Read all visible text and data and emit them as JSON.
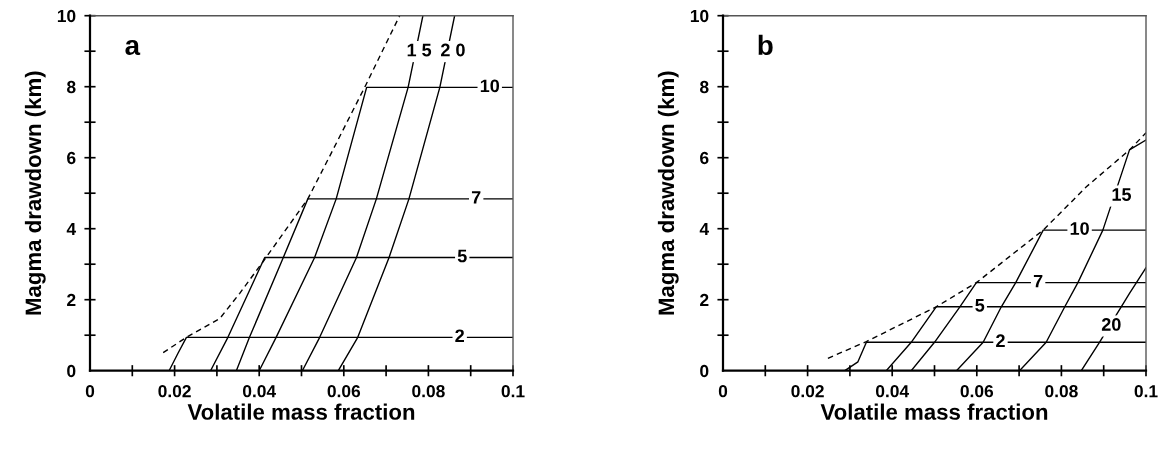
{
  "chart_data": [
    {
      "type": "line",
      "xlabel": "Volatile mass fraction",
      "ylabel": "Magma drawdown (km)",
      "xlim": [
        0,
        0.1
      ],
      "ylim": [
        0,
        10
      ],
      "xticks": [
        0,
        {
          "value": 0.01,
          "label": null
        },
        0.02,
        {
          "value": 0.03,
          "label": null
        },
        0.04,
        {
          "value": 0.05,
          "label": null
        },
        0.06,
        {
          "value": 0.07,
          "label": null
        },
        0.08,
        {
          "value": 0.09,
          "label": null
        },
        0.1
      ],
      "yticks": [
        0,
        {
          "value": 1,
          "label": null
        },
        2,
        {
          "value": 3,
          "label": null
        },
        4,
        {
          "value": 5,
          "label": null
        },
        6,
        {
          "value": 7,
          "label": null
        },
        8,
        {
          "value": 9,
          "label": null
        },
        10
      ],
      "grid": false,
      "legend": false,
      "marker": "none",
      "series": [
        {
          "color": "#000000",
          "line_style": "dashed",
          "x": [
            0.0173,
            0.0228,
            0.0307,
            0.0354,
            0.0409,
            0.0515,
            0.0582,
            0.0653,
            0.0732
          ],
          "values": [
            0.51,
            0.94,
            1.47,
            2.18,
            3.07,
            4.84,
            6.4,
            8.07,
            10
          ]
        },
        {
          "color": "#000000",
          "line_style": "solid",
          "x": [
            0.0187,
            0.0208,
            0.0228,
            0.1
          ],
          "values": [
            0,
            0.49,
            0.94,
            0.94
          ]
        },
        {
          "color": "#000000",
          "line_style": "solid",
          "x": [
            0.0285,
            0.0326,
            0.0413,
            0.1
          ],
          "values": [
            0,
            0.94,
            3.19,
            3.19
          ]
        },
        {
          "color": "#000000",
          "line_style": "solid",
          "x": [
            0.0346,
            0.0377,
            0.0457,
            0.0515,
            0.1
          ],
          "values": [
            0,
            0.94,
            3.19,
            4.84,
            4.84
          ]
        },
        {
          "color": "#000000",
          "line_style": "solid",
          "x": [
            0.04,
            0.044,
            0.0531,
            0.0582,
            0.0654,
            0.1
          ],
          "values": [
            0,
            0.94,
            3.19,
            4.84,
            7.98,
            7.98
          ]
        },
        {
          "color": "#000000",
          "line_style": "solid",
          "x": [
            0.0502,
            0.0543,
            0.063,
            0.0677,
            0.0752,
            0.0787
          ],
          "values": [
            0,
            0.94,
            3.19,
            4.84,
            7.98,
            10
          ]
        },
        {
          "color": "#000000",
          "line_style": "solid",
          "x": [
            0.0587,
            0.0633,
            0.0707,
            0.0754,
            0.0827,
            0.0862
          ],
          "values": [
            0,
            0.94,
            3.19,
            4.84,
            7.98,
            10
          ]
        }
      ],
      "annotations": [
        "a",
        {
          "text": "2",
          "x": 0.0874,
          "y": 0.94
        },
        {
          "text": "5",
          "x": 0.088,
          "y": 3.19
        },
        {
          "text": "7",
          "x": 0.0913,
          "y": 4.84
        },
        {
          "text": "10",
          "x": 0.0945,
          "y": 7.98
        },
        {
          "text": "1 5",
          "x": 0.0778,
          "y": 8.99
        },
        {
          "text": "2 0",
          "x": 0.0858,
          "y": 8.99
        }
      ]
    },
    {
      "type": "line",
      "xlabel": "Volatile mass fraction",
      "ylabel": "Magma drawdown (km)",
      "xlim": [
        0,
        0.1
      ],
      "ylim": [
        0,
        10
      ],
      "xticks": [
        0,
        {
          "value": 0.01,
          "label": null
        },
        0.02,
        {
          "value": 0.03,
          "label": null
        },
        0.04,
        {
          "value": 0.05,
          "label": null
        },
        0.06,
        {
          "value": 0.07,
          "label": null
        },
        0.08,
        {
          "value": 0.09,
          "label": null
        },
        0.1
      ],
      "yticks": [
        0,
        {
          "value": 1,
          "label": null
        },
        2,
        {
          "value": 3,
          "label": null
        },
        4,
        {
          "value": 5,
          "label": null
        },
        6,
        {
          "value": 7,
          "label": null
        },
        8,
        {
          "value": 9,
          "label": null
        },
        10
      ],
      "grid": false,
      "legend": false,
      "marker": "none",
      "series": [
        {
          "color": "#000000",
          "line_style": "dashed",
          "x": [
            0.0248,
            0.0339,
            0.0504,
            0.0599,
            0.0757,
            0.0859,
            0.0961,
            0.1
          ],
          "values": [
            0.35,
            0.82,
            1.8,
            2.48,
            3.96,
            5.18,
            6.22,
            6.7
          ]
        },
        {
          "color": "#000000",
          "line_style": "solid",
          "x": [
            0.0288,
            0.0319,
            0.0339,
            0.1
          ],
          "values": [
            0,
            0.25,
            0.8,
            0.8
          ]
        },
        {
          "color": "#000000",
          "line_style": "solid",
          "x": [
            0.0386,
            0.0445,
            0.0504,
            0.1
          ],
          "values": [
            0,
            0.8,
            1.8,
            1.8
          ]
        },
        {
          "color": "#000000",
          "line_style": "solid",
          "x": [
            0.0445,
            0.05,
            0.056,
            0.0599,
            0.1
          ],
          "values": [
            0,
            0.8,
            1.8,
            2.48,
            2.48
          ]
        },
        {
          "color": "#000000",
          "line_style": "solid",
          "x": [
            0.0552,
            0.0615,
            0.0658,
            0.0692,
            0.0757,
            0.1
          ],
          "values": [
            0,
            0.8,
            1.8,
            2.48,
            3.96,
            3.96
          ]
        },
        {
          "color": "#000000",
          "line_style": "solid",
          "x": [
            0.0701,
            0.0764,
            0.0808,
            0.0839,
            0.0898,
            0.0961,
            0.1
          ],
          "values": [
            0,
            0.8,
            1.8,
            2.48,
            3.96,
            6.22,
            6.5
          ]
        },
        {
          "color": "#000000",
          "line_style": "solid",
          "x": [
            0.0847,
            0.089,
            0.0961,
            0.1
          ],
          "values": [
            0,
            0.8,
            2.18,
            2.9
          ]
        }
      ],
      "annotations": [
        "b",
        {
          "text": "2",
          "x": 0.0656,
          "y": 0.8
        },
        {
          "text": "5",
          "x": 0.0607,
          "y": 1.8
        },
        {
          "text": "7",
          "x": 0.0745,
          "y": 2.48
        },
        {
          "text": "10",
          "x": 0.0843,
          "y": 3.96
        },
        {
          "text": "15",
          "x": 0.0942,
          "y": 4.92
        },
        {
          "text": "20",
          "x": 0.0918,
          "y": 1.26
        }
      ]
    }
  ]
}
